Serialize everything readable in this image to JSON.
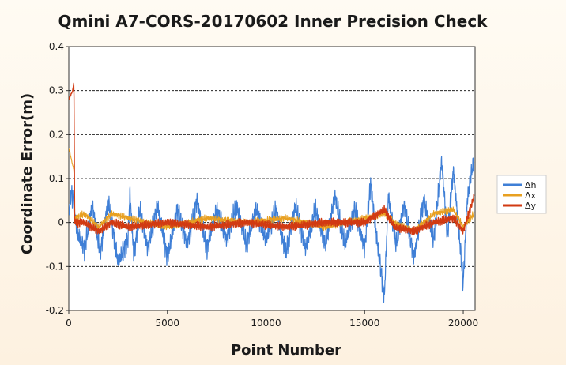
{
  "chart_data": {
    "type": "line",
    "title": "Qmini A7-CORS-20170602 Inner Precision Check",
    "xlabel": "Point Number",
    "ylabel": "Coordinate Error(m)",
    "xlim": [
      0,
      20600
    ],
    "ylim": [
      -0.2,
      0.4
    ],
    "x_ticks": [
      0,
      5000,
      10000,
      15000,
      20000
    ],
    "y_ticks": [
      -0.2,
      -0.1,
      0,
      0.1,
      0.2,
      0.3,
      0.4
    ],
    "x_tick_labels": [
      "0",
      "5000",
      "10000",
      "15000",
      "20000"
    ],
    "y_tick_labels": [
      "-0.2",
      "-0.1",
      "0",
      "0.1",
      "0.2",
      "0.3",
      "0.4"
    ],
    "grid": "horizontal-dashed",
    "legend_position": "right",
    "series": [
      {
        "name": "Δh",
        "color": "#3f7fd6",
        "points": [
          [
            0,
            0.02
          ],
          [
            120,
            0.07
          ],
          [
            250,
            0.05
          ],
          [
            400,
            -0.02
          ],
          [
            800,
            -0.06
          ],
          [
            1200,
            0.04
          ],
          [
            1600,
            -0.07
          ],
          [
            2000,
            0.05
          ],
          [
            2500,
            -0.09
          ],
          [
            3000,
            -0.04
          ],
          [
            3100,
            0.07
          ],
          [
            3300,
            -0.08
          ],
          [
            3600,
            0.03
          ],
          [
            4000,
            -0.06
          ],
          [
            4500,
            0.04
          ],
          [
            5000,
            -0.08
          ],
          [
            5500,
            0.03
          ],
          [
            6000,
            -0.05
          ],
          [
            6500,
            0.05
          ],
          [
            7000,
            -0.06
          ],
          [
            7500,
            0.03
          ],
          [
            8000,
            -0.04
          ],
          [
            8500,
            0.04
          ],
          [
            9000,
            -0.05
          ],
          [
            9500,
            0.03
          ],
          [
            10000,
            -0.04
          ],
          [
            10500,
            0.03
          ],
          [
            11000,
            -0.07
          ],
          [
            11500,
            0.04
          ],
          [
            12000,
            -0.06
          ],
          [
            12500,
            0.03
          ],
          [
            13000,
            -0.05
          ],
          [
            13500,
            0.06
          ],
          [
            14000,
            -0.05
          ],
          [
            14500,
            0.03
          ],
          [
            15000,
            -0.06
          ],
          [
            15300,
            0.09
          ],
          [
            15600,
            -0.03
          ],
          [
            16000,
            -0.17
          ],
          [
            16200,
            0.06
          ],
          [
            16600,
            -0.05
          ],
          [
            17000,
            0.04
          ],
          [
            17500,
            -0.08
          ],
          [
            18000,
            0.05
          ],
          [
            18500,
            -0.04
          ],
          [
            18900,
            0.14
          ],
          [
            19200,
            -0.03
          ],
          [
            19500,
            0.12
          ],
          [
            19800,
            -0.03
          ],
          [
            20000,
            -0.14
          ],
          [
            20200,
            0.05
          ],
          [
            20400,
            0.11
          ],
          [
            20550,
            0.14
          ]
        ]
      },
      {
        "name": "Δx",
        "color": "#e8a021",
        "points": [
          [
            0,
            0.17
          ],
          [
            100,
            0.15
          ],
          [
            200,
            0.13
          ],
          [
            260,
            0.12
          ],
          [
            300,
            0.01
          ],
          [
            800,
            0.02
          ],
          [
            1500,
            -0.01
          ],
          [
            2200,
            0.02
          ],
          [
            3000,
            0.01
          ],
          [
            5000,
            -0.01
          ],
          [
            7000,
            0.01
          ],
          [
            9000,
            0.0
          ],
          [
            11000,
            0.01
          ],
          [
            13000,
            -0.01
          ],
          [
            15000,
            0.01
          ],
          [
            16000,
            0.02
          ],
          [
            16500,
            0.0
          ],
          [
            17500,
            -0.02
          ],
          [
            18500,
            0.02
          ],
          [
            19500,
            0.03
          ],
          [
            20000,
            -0.01
          ],
          [
            20550,
            0.02
          ]
        ]
      },
      {
        "name": "Δy",
        "color": "#d13a12",
        "points": [
          [
            0,
            0.28
          ],
          [
            100,
            0.29
          ],
          [
            200,
            0.3
          ],
          [
            260,
            0.32
          ],
          [
            300,
            0.0
          ],
          [
            800,
            0.0
          ],
          [
            1500,
            -0.02
          ],
          [
            2200,
            0.0
          ],
          [
            3000,
            -0.01
          ],
          [
            5000,
            0.0
          ],
          [
            7000,
            -0.01
          ],
          [
            9000,
            0.0
          ],
          [
            11000,
            -0.01
          ],
          [
            13000,
            0.0
          ],
          [
            15000,
            0.0
          ],
          [
            16000,
            0.03
          ],
          [
            16500,
            -0.01
          ],
          [
            17500,
            -0.02
          ],
          [
            18500,
            0.0
          ],
          [
            19500,
            0.01
          ],
          [
            20000,
            -0.02
          ],
          [
            20550,
            0.06
          ]
        ]
      }
    ]
  }
}
